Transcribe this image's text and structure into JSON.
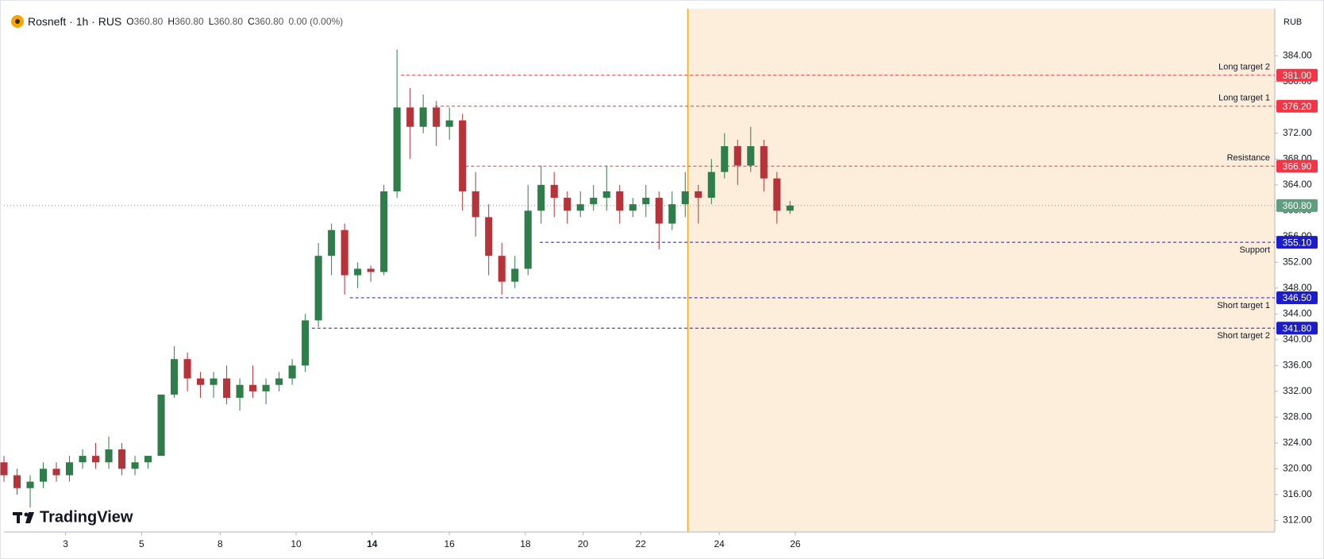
{
  "chart_data": {
    "type": "candlestick",
    "symbol": "Rosneft · 1h · RUS",
    "ohlc_header": [
      {
        "key": "O",
        "value": "360.80"
      },
      {
        "key": "H",
        "value": "360.80"
      },
      {
        "key": "L",
        "value": "360.80"
      },
      {
        "key": "C",
        "value": "360.80"
      },
      {
        "key": "",
        "value": "0.00 (0.00%)"
      }
    ],
    "currency": "RUB",
    "watermark": "TradingView",
    "up_color": "#2f7d4a",
    "down_color": "#b5343a",
    "grid": false,
    "open": [
      321,
      319,
      317,
      318,
      320,
      319,
      321,
      322,
      321,
      323,
      320,
      321,
      322,
      331.5,
      337,
      334,
      333,
      334,
      331,
      333,
      332,
      333,
      334,
      336,
      343,
      353,
      357,
      350,
      351,
      350.5,
      363,
      376,
      373,
      376,
      373,
      374,
      363,
      359,
      353,
      349,
      351,
      360,
      364,
      362,
      360,
      361,
      362,
      363,
      360,
      361,
      362,
      358,
      361,
      363,
      362,
      366,
      370,
      367,
      370,
      365,
      360
    ],
    "high": [
      322,
      320,
      319,
      321,
      321,
      322,
      323,
      324,
      325,
      324,
      322,
      322,
      331.5,
      339,
      338,
      335,
      335,
      336,
      334,
      336,
      334,
      335,
      337,
      344,
      355,
      358,
      358,
      352,
      351.5,
      364,
      385,
      379,
      378,
      377,
      376,
      375,
      366,
      361,
      355,
      353,
      364,
      367,
      366,
      363,
      363,
      364,
      367,
      364,
      362,
      364,
      363,
      363,
      366,
      364,
      368,
      372,
      371,
      373,
      371,
      366,
      361.5
    ],
    "low": [
      318,
      316,
      314,
      317,
      318,
      318,
      320,
      320,
      320,
      319,
      319,
      320,
      322,
      331,
      332,
      331,
      331,
      330,
      329,
      331,
      330,
      332,
      333,
      335,
      342,
      350,
      347,
      348,
      349,
      350,
      362,
      368,
      372,
      370,
      371,
      360,
      356,
      350,
      347,
      348,
      350,
      358,
      359,
      358,
      359,
      360,
      360,
      358,
      359,
      359,
      354,
      357,
      359,
      358,
      361,
      365,
      364,
      366,
      363,
      358,
      359.5
    ],
    "close": [
      319,
      317,
      318,
      320,
      319,
      321,
      322,
      321,
      323,
      320,
      321,
      322,
      331.5,
      337,
      334,
      333,
      334,
      331,
      333,
      332,
      333,
      334,
      336,
      343,
      353,
      357,
      350,
      351,
      350.5,
      363,
      376,
      373,
      376,
      373,
      374,
      363,
      359,
      353,
      349,
      351,
      360,
      364,
      362,
      360,
      361,
      362,
      363,
      360,
      361,
      362,
      358,
      361,
      363,
      362,
      366,
      370,
      367,
      370,
      365,
      360,
      360.8
    ],
    "xlim": [
      0,
      97
    ],
    "xticks": [
      {
        "value": 4.7,
        "label": "3"
      },
      {
        "value": 10.5,
        "label": "5"
      },
      {
        "value": 16.5,
        "label": "8"
      },
      {
        "value": 22.3,
        "label": "10"
      },
      {
        "value": 28.1,
        "label": "14"
      },
      {
        "value": 34.0,
        "label": "16"
      },
      {
        "value": 39.8,
        "label": "18"
      },
      {
        "value": 44.2,
        "label": "20"
      },
      {
        "value": 48.6,
        "label": "22"
      },
      {
        "value": 54.6,
        "label": "24"
      },
      {
        "value": 60.4,
        "label": "26"
      }
    ],
    "ylim": [
      310.2,
      391.3
    ],
    "yticks": [
      {
        "value": 312,
        "label": "312.00"
      },
      {
        "value": 316,
        "label": "316.00"
      },
      {
        "value": 320,
        "label": "320.00"
      },
      {
        "value": 324,
        "label": "324.00"
      },
      {
        "value": 328,
        "label": "328.00"
      },
      {
        "value": 332,
        "label": "332.00"
      },
      {
        "value": 336,
        "label": "336.00"
      },
      {
        "value": 340,
        "label": "340.00"
      },
      {
        "value": 344,
        "label": "344.00"
      },
      {
        "value": 348,
        "label": "348.00"
      },
      {
        "value": 352,
        "label": "352.00"
      },
      {
        "value": 356,
        "label": "356.00"
      },
      {
        "value": 360,
        "label": "360.00"
      },
      {
        "value": 364,
        "label": "364.00"
      },
      {
        "value": 368,
        "label": "368.00"
      },
      {
        "value": 372,
        "label": "372.00"
      },
      {
        "value": 376,
        "label": "376.00"
      },
      {
        "value": 380,
        "label": "380.00"
      },
      {
        "value": 384,
        "label": "384.00"
      }
    ],
    "highlight_start": 52.2,
    "levels": [
      {
        "name": "Long target 2",
        "value": 381,
        "value_label": "381.00",
        "from": 30.3,
        "color": "#f23645",
        "label_side": "above"
      },
      {
        "name": "Long target 1",
        "value": 376.2,
        "value_label": "376.20",
        "from": 32.9,
        "color": "#f23645",
        "label_side": "above"
      },
      {
        "name": "Resistance",
        "value": 366.9,
        "value_label": "366.90",
        "from": 34.8,
        "color": "#f23645",
        "label_side": "above"
      },
      {
        "name": "Support",
        "value": 355.1,
        "value_label": "355.10",
        "from": 40.9,
        "color": "#1c1cc8",
        "label_side": "below"
      },
      {
        "name": "Short target 1",
        "value": 346.5,
        "value_label": "346.50",
        "from": 26.4,
        "color": "#1c1cc8",
        "label_side": "below"
      },
      {
        "name": "Short target 2",
        "value": 341.8,
        "value_label": "341.80",
        "from": 23.5,
        "color": "#1c1cc8",
        "label_side": "below"
      }
    ],
    "last_price": {
      "value": 360.8,
      "label": "360.80",
      "color": "#5f9e7e"
    }
  }
}
